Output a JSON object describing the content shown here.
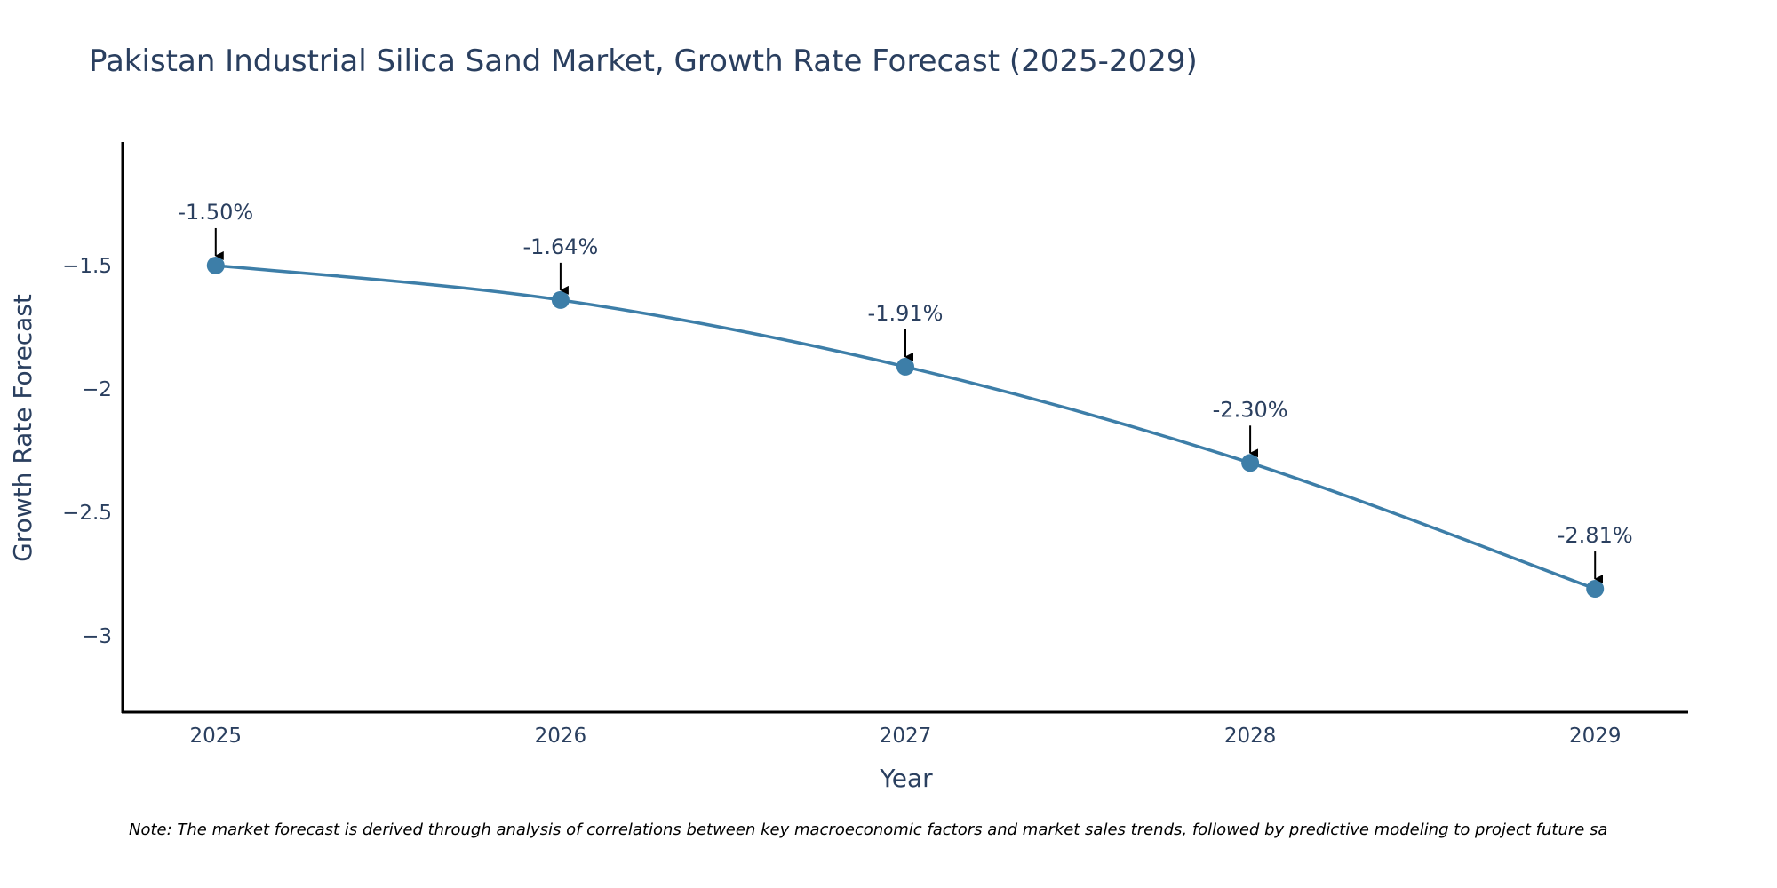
{
  "colors": {
    "series": "#3d7ea8",
    "axis": "#000000",
    "text": "#2a3f5f",
    "arrow": "#000000"
  },
  "chart_data": {
    "type": "line",
    "title": "Pakistan Industrial Silica Sand Market, Growth Rate Forecast (2025-2029)",
    "xlabel": "Year",
    "ylabel": "Growth Rate Forecast",
    "x": [
      2025,
      2026,
      2027,
      2028,
      2029
    ],
    "x_tick_labels": [
      "2025",
      "2026",
      "2027",
      "2028",
      "2029"
    ],
    "series": [
      {
        "name": "Growth Rate Forecast",
        "values": [
          -1.5,
          -1.64,
          -1.91,
          -2.3,
          -2.81
        ],
        "line_shape": "spline",
        "markers": true
      }
    ],
    "data_labels": [
      "-1.50%",
      "-1.64%",
      "-1.91%",
      "-2.30%",
      "-2.81%"
    ],
    "y_ticks": [
      -1.5,
      -2,
      -2.5,
      -3
    ],
    "y_tick_labels": [
      "−1.5",
      "−2",
      "−2.5",
      "−3"
    ],
    "ylim": [
      -3.31,
      -1.0
    ],
    "xlim": [
      2024.73,
      2029.27
    ],
    "grid": false,
    "legend": "none",
    "annotation_style": "arrow"
  },
  "note": "Note: The market forecast is derived through analysis of correlations between key macroeconomic factors and market sales trends, followed by predictive modeling to project future sa"
}
